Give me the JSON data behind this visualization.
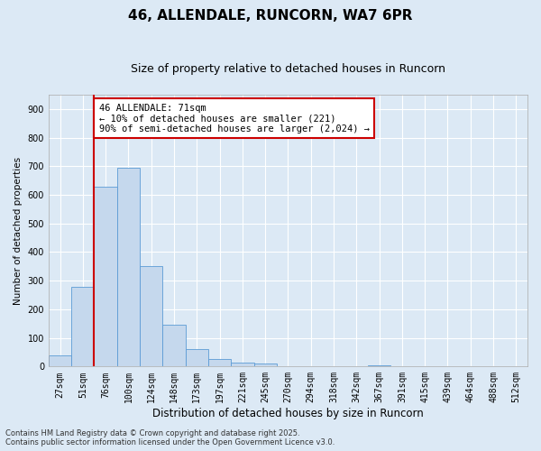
{
  "title": "46, ALLENDALE, RUNCORN, WA7 6PR",
  "subtitle": "Size of property relative to detached houses in Runcorn",
  "xlabel": "Distribution of detached houses by size in Runcorn",
  "ylabel": "Number of detached properties",
  "bar_labels": [
    "27sqm",
    "51sqm",
    "76sqm",
    "100sqm",
    "124sqm",
    "148sqm",
    "173sqm",
    "197sqm",
    "221sqm",
    "245sqm",
    "270sqm",
    "294sqm",
    "318sqm",
    "342sqm",
    "367sqm",
    "391sqm",
    "415sqm",
    "439sqm",
    "464sqm",
    "488sqm",
    "512sqm"
  ],
  "bar_values": [
    40,
    280,
    630,
    695,
    350,
    145,
    60,
    25,
    15,
    10,
    0,
    0,
    0,
    0,
    5,
    0,
    0,
    0,
    0,
    0,
    0
  ],
  "bar_color": "#c5d8ed",
  "bar_edge_color": "#5b9bd5",
  "background_color": "#dce9f5",
  "grid_color": "#ffffff",
  "vline_color": "#cc0000",
  "vline_x": 1.5,
  "annotation_text": "46 ALLENDALE: 71sqm\n← 10% of detached houses are smaller (221)\n90% of semi-detached houses are larger (2,024) →",
  "annotation_box_color": "#ffffff",
  "annotation_box_edge_color": "#cc0000",
  "footer_line1": "Contains HM Land Registry data © Crown copyright and database right 2025.",
  "footer_line2": "Contains public sector information licensed under the Open Government Licence v3.0.",
  "ylim": [
    0,
    950
  ],
  "yticks": [
    0,
    100,
    200,
    300,
    400,
    500,
    600,
    700,
    800,
    900
  ],
  "title_fontsize": 11,
  "subtitle_fontsize": 9,
  "xlabel_fontsize": 8.5,
  "ylabel_fontsize": 7.5,
  "tick_fontsize": 7,
  "annotation_fontsize": 7.5,
  "footer_fontsize": 6
}
